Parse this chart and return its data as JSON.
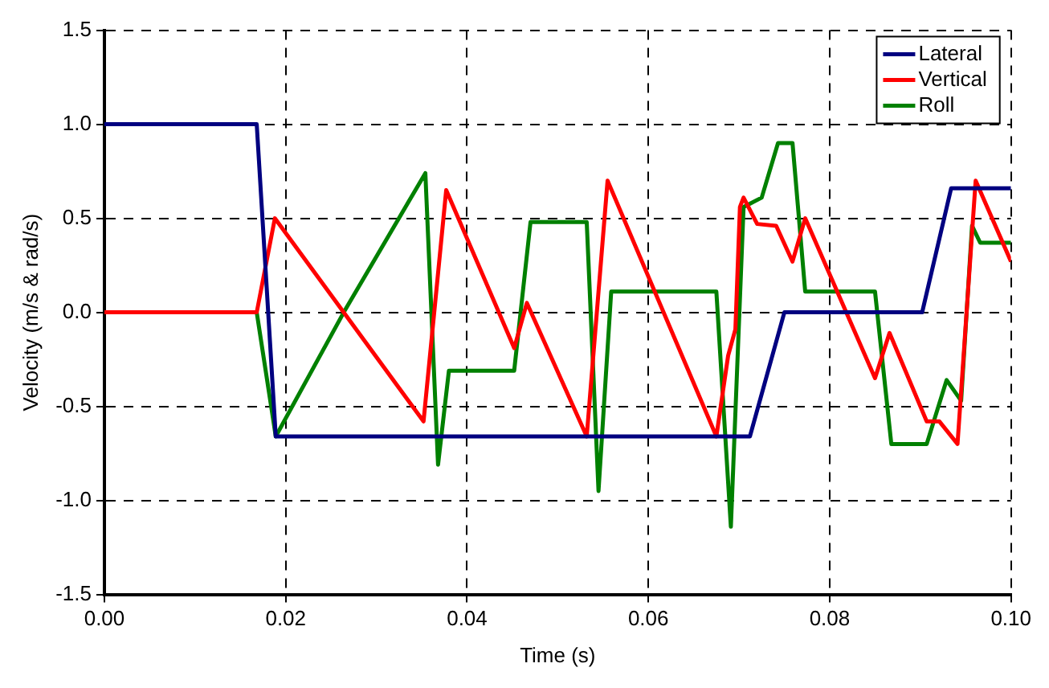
{
  "chart_data": {
    "type": "line",
    "xlabel": "Time (s)",
    "ylabel": "Velocity (m/s & rad/s)",
    "xlim": [
      0,
      0.1
    ],
    "xticks": [
      {
        "value": 0,
        "label": "0.00"
      },
      {
        "value": 0.02,
        "label": "0.02"
      },
      {
        "value": 0.04,
        "label": "0.04"
      },
      {
        "value": 0.06,
        "label": "0.06"
      },
      {
        "value": 0.08,
        "label": "0.08"
      },
      {
        "value": 0.1,
        "label": "0.10"
      }
    ],
    "ylim": [
      -1.5,
      1.5
    ],
    "yticks": [
      {
        "value": -1.5,
        "label": "-1.5"
      },
      {
        "value": -1,
        "label": "-1.0"
      },
      {
        "value": -0.5,
        "label": "-0.5"
      },
      {
        "value": 0,
        "label": "0.0"
      },
      {
        "value": 0.5,
        "label": "0.5"
      },
      {
        "value": 1,
        "label": "1.0"
      },
      {
        "value": 1.5,
        "label": "1.5"
      }
    ],
    "grid": true,
    "legend": "top right",
    "marker": "none",
    "line_style": "solid",
    "series": [
      {
        "name": "Lateral",
        "color": "#000080",
        "x": [
          0,
          0.0168,
          0.0189,
          0.0712,
          0.075,
          0.0902,
          0.0934,
          0.1
        ],
        "values": [
          1.0,
          1.0,
          -0.66,
          -0.66,
          0,
          0,
          0.66,
          0.66
        ]
      },
      {
        "name": "Vertical",
        "color": "#ff0000",
        "x": [
          0,
          0.0168,
          0.0188,
          0.0352,
          0.0377,
          0.0452,
          0.0466,
          0.0532,
          0.0555,
          0.0675,
          0.0688,
          0.0696,
          0.0701,
          0.0705,
          0.072,
          0.0741,
          0.0759,
          0.0773,
          0.085,
          0.0866,
          0.0907,
          0.0921,
          0.0941,
          0.0961,
          0.1
        ],
        "values": [
          0,
          0,
          0.5,
          -0.58,
          0.65,
          -0.19,
          0.05,
          -0.66,
          0.7,
          -0.66,
          -0.23,
          -0.09,
          0.56,
          0.61,
          0.47,
          0.46,
          0.27,
          0.5,
          -0.35,
          -0.11,
          -0.58,
          -0.58,
          -0.7,
          0.7,
          0.27
        ]
      },
      {
        "name": "Roll",
        "color": "#008000",
        "x": [
          0,
          0.0168,
          0.0189,
          0.0264,
          0.0354,
          0.0368,
          0.038,
          0.0452,
          0.047,
          0.0532,
          0.0545,
          0.0559,
          0.0675,
          0.0691,
          0.0705,
          0.0725,
          0.0743,
          0.0759,
          0.0773,
          0.085,
          0.0868,
          0.0907,
          0.0929,
          0.0945,
          0.0957,
          0.0966,
          0.1
        ],
        "values": [
          0,
          0,
          -0.66,
          0,
          0.74,
          -0.81,
          -0.31,
          -0.31,
          0.48,
          0.48,
          -0.95,
          0.11,
          0.11,
          -1.14,
          0.56,
          0.61,
          0.9,
          0.9,
          0.11,
          0.11,
          -0.7,
          -0.7,
          -0.36,
          -0.47,
          0.46,
          0.37,
          0.37
        ]
      }
    ]
  }
}
